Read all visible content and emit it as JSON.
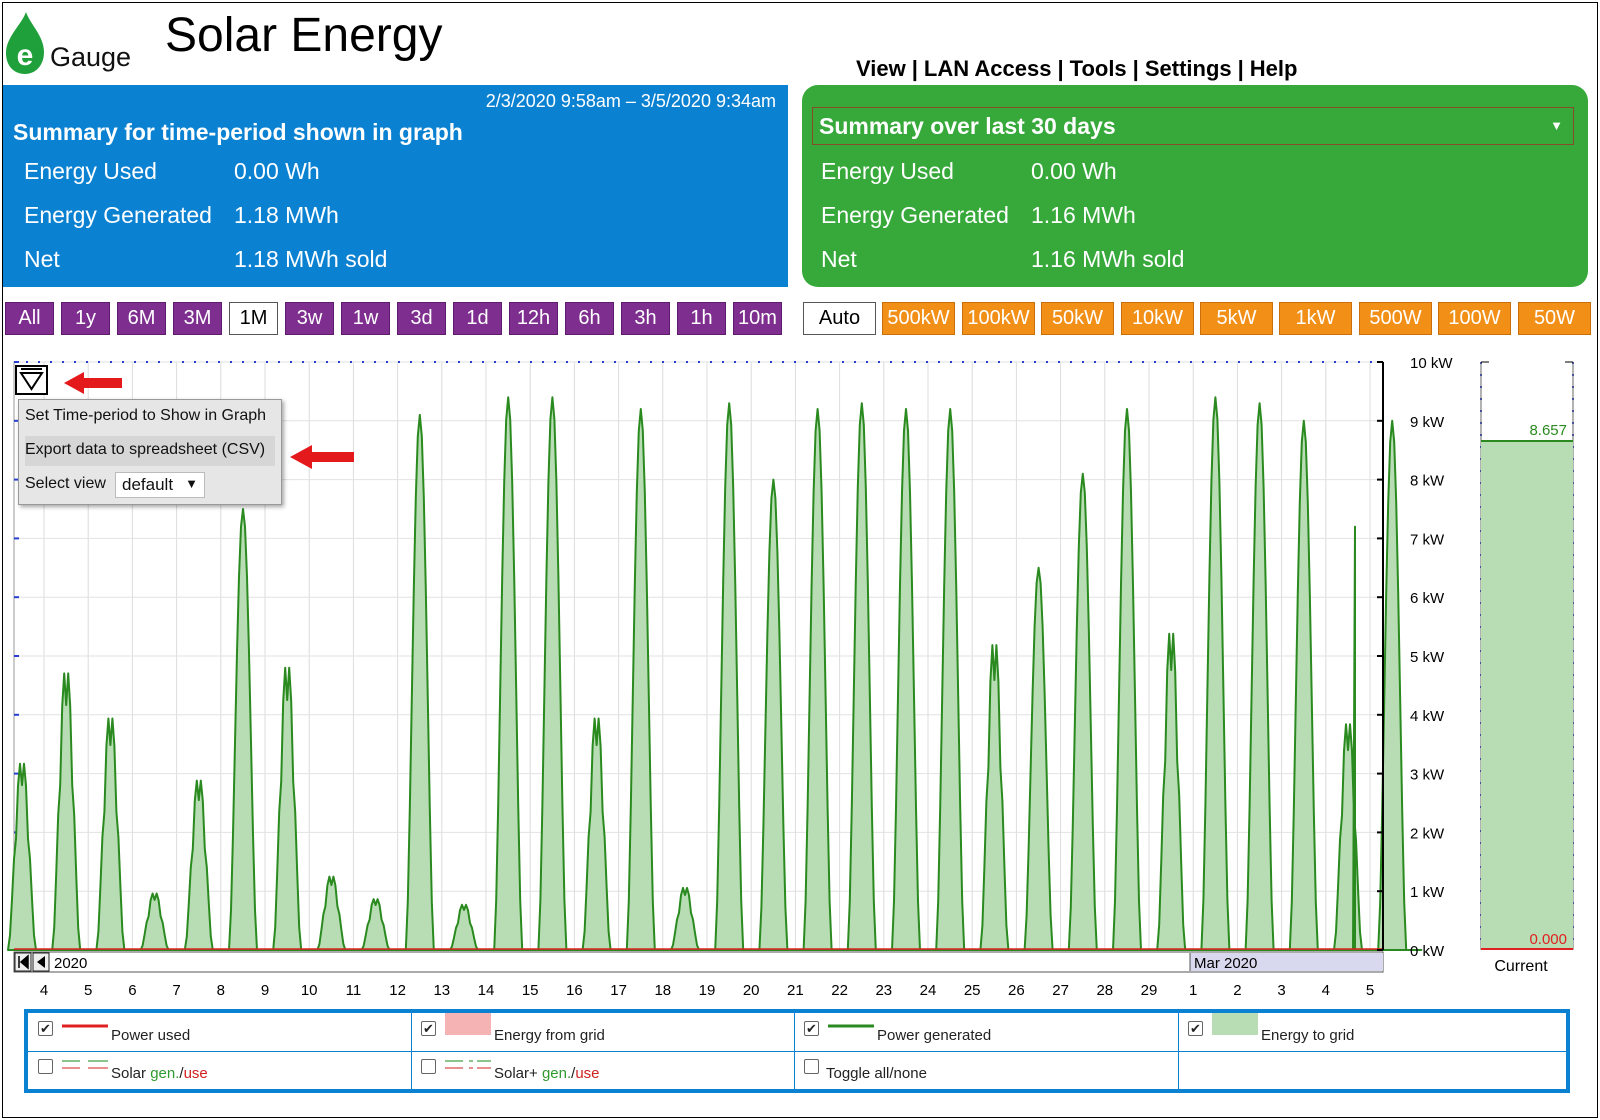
{
  "app": {
    "logo_text": "Gauge",
    "title": "Solar Energy"
  },
  "nav": {
    "view": "View",
    "lan": "LAN Access",
    "tools": "Tools",
    "settings": "Settings",
    "help": "Help",
    "sep": "|"
  },
  "graph_summary": {
    "range": "2/3/2020 9:58am – 3/5/2020 9:34am",
    "title": "Summary for time-period shown in graph",
    "rows": [
      {
        "label": "Energy Used",
        "value": "0.00 Wh"
      },
      {
        "label": "Energy Generated",
        "value": "1.18 MWh"
      },
      {
        "label": "Net",
        "value": "1.18 MWh sold"
      }
    ]
  },
  "period_summary": {
    "selected": "Summary over last 30 days",
    "rows": [
      {
        "label": "Energy Used",
        "value": "0.00 Wh"
      },
      {
        "label": "Energy Generated",
        "value": "1.16 MWh"
      },
      {
        "label": "Net",
        "value": "1.16 MWh sold"
      }
    ]
  },
  "time_buttons": [
    "All",
    "1y",
    "6M",
    "3M",
    "1M",
    "3w",
    "1w",
    "3d",
    "1d",
    "12h",
    "6h",
    "3h",
    "1h",
    "10m"
  ],
  "time_selected": "1M",
  "scale_buttons": [
    "Auto",
    "500kW",
    "100kW",
    "50kW",
    "10kW",
    "5kW",
    "1kW",
    "500W",
    "100W",
    "50W"
  ],
  "scale_selected": "Auto",
  "graph_menu": {
    "item1": "Set Time-period to Show in Graph",
    "item2": "Export data to spreadsheet (CSV)",
    "view_label": "Select view",
    "view_value": "default"
  },
  "colors": {
    "blue": "#0b81d2",
    "green_panel": "#37a93b",
    "purple": "#7d2e8e",
    "orange": "#f28f17",
    "line": "#2a8a1f",
    "fill": "#b8ddb5"
  },
  "chart_data": {
    "type": "area",
    "series": [
      {
        "name": "Power generated"
      }
    ],
    "ylim": [
      0,
      10
    ],
    "y_ticks": [
      "10 kW",
      "9 kW",
      "8 kW",
      "7 kW",
      "6 kW",
      "5 kW",
      "4 kW",
      "3 kW",
      "2 kW",
      "1 kW",
      "0 kW"
    ],
    "x_ticks": [
      "4",
      "5",
      "6",
      "7",
      "8",
      "9",
      "10",
      "11",
      "12",
      "13",
      "14",
      "15",
      "16",
      "17",
      "18",
      "19",
      "20",
      "21",
      "22",
      "23",
      "24",
      "25",
      "26",
      "27",
      "28",
      "29",
      "1",
      "2",
      "3",
      "4",
      "5"
    ],
    "daily_peaks_kw": [
      3.3,
      4.9,
      4.1,
      1.0,
      3.0,
      7.5,
      5.0,
      1.3,
      0.9,
      9.1,
      0.8,
      9.4,
      9.4,
      4.1,
      9.2,
      1.1,
      9.3,
      8.0,
      9.2,
      9.3,
      9.2,
      9.2,
      5.4,
      6.5,
      8.1,
      9.2,
      5.6,
      9.4,
      9.3,
      9.0,
      4.0,
      9.0
    ],
    "scrollbar_left": "2020",
    "scrollbar_right": "Mar 2020",
    "current": {
      "generated": "8.657",
      "used": "0.000",
      "label": "Current"
    }
  },
  "legend": [
    {
      "label": "Power used",
      "checked": true
    },
    {
      "label": "Energy from grid",
      "checked": true
    },
    {
      "label": "Power generated",
      "checked": true
    },
    {
      "label": "Energy to grid",
      "checked": true
    },
    {
      "label": "Solar",
      "gen": "gen.",
      "slash": "/",
      "use": "use",
      "checked": false
    },
    {
      "label": "Solar+",
      "gen": "gen.",
      "slash": "/",
      "use": "use",
      "checked": false
    },
    {
      "label": "Toggle all/none",
      "checked": false
    }
  ]
}
